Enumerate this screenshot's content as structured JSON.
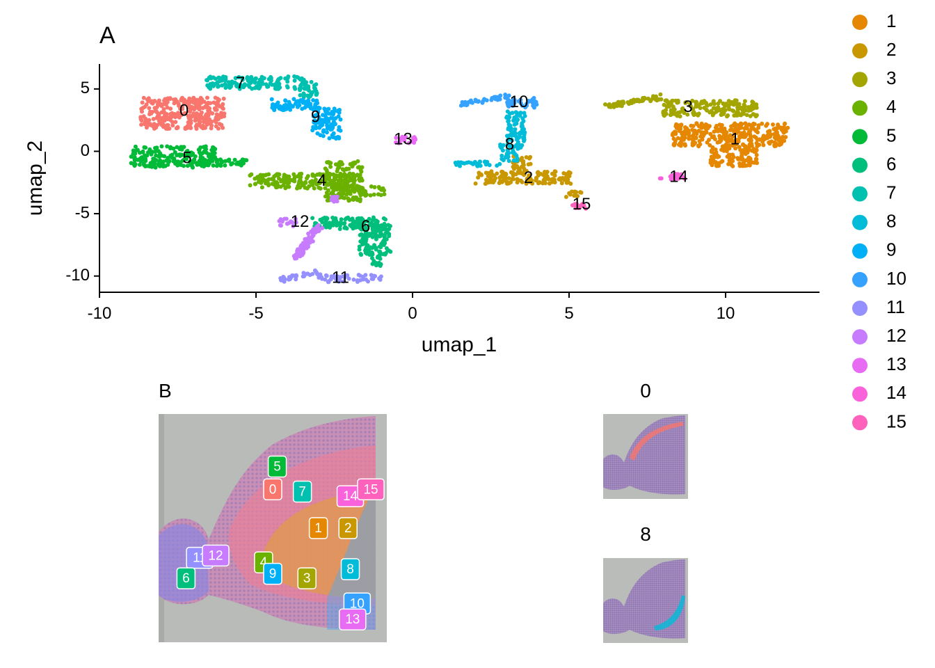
{
  "chart_data": [
    {
      "type": "scatter",
      "panel": "A",
      "xlabel": "umap_1",
      "ylabel": "umap_2",
      "xlim": [
        -10,
        13
      ],
      "ylim": [
        -11.3,
        7
      ],
      "x_ticks": [
        "-10",
        "-5",
        "0",
        "5",
        "10"
      ],
      "x_tick_values": [
        -10,
        -5,
        0,
        5,
        10
      ],
      "y_ticks": [
        "-10",
        "-5",
        "0",
        "5"
      ],
      "y_tick_values": [
        -10,
        -5,
        0,
        5
      ],
      "grid": false,
      "legend": "right",
      "series": [
        {
          "name": "0",
          "color": "#F8766D",
          "label_pos": [
            -7.3,
            3.2
          ],
          "segments": [
            [
              -8.7,
              1.8,
              -6.0,
              4.3,
              "box"
            ]
          ]
        },
        {
          "name": "1",
          "color": "#E58700",
          "label_pos": [
            10.3,
            0.9
          ],
          "segments": [
            [
              8.3,
              0.4,
              12.0,
              2.3,
              "box"
            ],
            [
              9.5,
              -1.2,
              11.0,
              0.4,
              "box"
            ]
          ]
        },
        {
          "name": "2",
          "color": "#C99800",
          "label_pos": [
            3.7,
            -2.2
          ],
          "segments": [
            [
              2.0,
              -2.6,
              5.1,
              -1.6,
              "box"
            ],
            [
              3.2,
              -1.6,
              3.8,
              -0.4,
              "box"
            ],
            [
              4.9,
              -3.7,
              5.4,
              -3.2,
              "box"
            ]
          ]
        },
        {
          "name": "3",
          "color": "#A3A500",
          "label_pos": [
            8.8,
            3.5
          ],
          "segments": [
            [
              6.2,
              3.6,
              8.0,
              4.4,
              "line"
            ],
            [
              8.0,
              2.8,
              11.0,
              4.1,
              "box"
            ]
          ]
        },
        {
          "name": "4",
          "color": "#6BB100",
          "label_pos": [
            -2.9,
            -2.4
          ],
          "segments": [
            [
              -5.2,
              -3.0,
              -2.0,
              -1.8,
              "box"
            ],
            [
              -2.8,
              -4.0,
              -1.6,
              -0.8,
              "box"
            ],
            [
              -1.8,
              -3.6,
              -0.9,
              -2.8,
              "box"
            ]
          ]
        },
        {
          "name": "5",
          "color": "#00BA38",
          "label_pos": [
            -7.2,
            -0.6
          ],
          "segments": [
            [
              -9.0,
              -1.3,
              -6.3,
              0.4,
              "box"
            ],
            [
              -6.3,
              -1.2,
              -5.3,
              -0.6,
              "box"
            ]
          ]
        },
        {
          "name": "6",
          "color": "#00BF7D",
          "label_pos": [
            -1.5,
            -6.1
          ],
          "segments": [
            [
              -3.2,
              -6.3,
              -0.8,
              -5.3,
              "box"
            ],
            [
              -1.7,
              -8.3,
              -0.7,
              -5.8,
              "box"
            ],
            [
              -1.3,
              -9.2,
              -1.0,
              -8.3,
              "box"
            ]
          ]
        },
        {
          "name": "7",
          "color": "#00C0AF",
          "label_pos": [
            -5.5,
            5.4
          ],
          "segments": [
            [
              -6.6,
              5.0,
              -3.4,
              6.0,
              "box"
            ],
            [
              -3.6,
              4.3,
              -3.0,
              5.6,
              "box"
            ]
          ]
        },
        {
          "name": "8",
          "color": "#00BCD8",
          "label_pos": [
            3.1,
            0.5
          ],
          "segments": [
            [
              3.0,
              0.2,
              3.6,
              3.2,
              "box"
            ],
            [
              1.3,
              -1.2,
              2.8,
              -0.8,
              "box"
            ],
            [
              2.8,
              -0.8,
              3.4,
              0.6,
              "box"
            ]
          ]
        },
        {
          "name": "9",
          "color": "#00B0F6",
          "label_pos": [
            -3.1,
            2.7
          ],
          "segments": [
            [
              -4.5,
              3.4,
              -3.0,
              4.2,
              "box"
            ],
            [
              -3.2,
              1.0,
              -2.3,
              3.5,
              "box"
            ],
            [
              -4.5,
              3.3,
              -3.9,
              3.7,
              "box"
            ]
          ]
        },
        {
          "name": "10",
          "color": "#35A2FF",
          "label_pos": [
            3.4,
            3.9
          ],
          "segments": [
            [
              1.6,
              3.8,
              3.0,
              4.4,
              "line"
            ],
            [
              3.0,
              3.5,
              4.0,
              4.3,
              "box"
            ]
          ]
        },
        {
          "name": "11",
          "color": "#9590FF",
          "label_pos": [
            -2.3,
            -10.2
          ],
          "segments": [
            [
              -4.2,
              -10.3,
              -3.0,
              -9.7,
              "line"
            ],
            [
              -3.0,
              -10.5,
              -1.0,
              -9.9,
              "box"
            ]
          ]
        },
        {
          "name": "12",
          "color": "#C77CFF",
          "label_pos": [
            -3.6,
            -5.7
          ],
          "segments": [
            [
              -4.3,
              -6.0,
              -3.7,
              -5.4,
              "box"
            ],
            [
              -3.7,
              -8.5,
              -3.0,
              -6.0,
              "line"
            ],
            [
              -2.6,
              -4.1,
              -2.4,
              -3.6,
              "box"
            ]
          ]
        },
        {
          "name": "13",
          "color": "#E76BF3",
          "label_pos": [
            -0.3,
            0.9
          ],
          "segments": [
            [
              -0.6,
              0.6,
              0.1,
              1.2,
              "box"
            ]
          ]
        },
        {
          "name": "14",
          "color": "#FA62DB",
          "label_pos": [
            8.5,
            -2.1
          ],
          "segments": [
            [
              7.9,
              -2.3,
              8.8,
              -1.8,
              "box"
            ]
          ]
        },
        {
          "name": "15",
          "color": "#FF62BC",
          "label_pos": [
            5.4,
            -4.3
          ],
          "segments": [
            [
              5.1,
              -4.7,
              5.6,
              -4.2,
              "box"
            ]
          ]
        }
      ]
    },
    {
      "type": "spatial",
      "panel": "B",
      "title": "B",
      "labels": [
        {
          "name": "5",
          "color": "#00BA38",
          "pos": [
            0.52,
            0.23
          ]
        },
        {
          "name": "0",
          "color": "#F8766D",
          "pos": [
            0.5,
            0.33
          ]
        },
        {
          "name": "7",
          "color": "#00C0AF",
          "pos": [
            0.63,
            0.34
          ]
        },
        {
          "name": "14",
          "color": "#FA62DB",
          "pos": [
            0.84,
            0.36
          ]
        },
        {
          "name": "15",
          "color": "#FF62BC",
          "pos": [
            0.93,
            0.33
          ]
        },
        {
          "name": "1",
          "color": "#E58700",
          "pos": [
            0.7,
            0.5
          ]
        },
        {
          "name": "2",
          "color": "#C99800",
          "pos": [
            0.83,
            0.5
          ]
        },
        {
          "name": "11",
          "color": "#9590FF",
          "pos": [
            0.18,
            0.63
          ]
        },
        {
          "name": "12",
          "color": "#C77CFF",
          "pos": [
            0.25,
            0.62
          ]
        },
        {
          "name": "4",
          "color": "#6BB100",
          "pos": [
            0.46,
            0.65
          ]
        },
        {
          "name": "9",
          "color": "#00B0F6",
          "pos": [
            0.5,
            0.7
          ]
        },
        {
          "name": "6",
          "color": "#00BF7D",
          "pos": [
            0.12,
            0.72
          ]
        },
        {
          "name": "3",
          "color": "#A3A500",
          "pos": [
            0.65,
            0.72
          ]
        },
        {
          "name": "8",
          "color": "#00BCD8",
          "pos": [
            0.84,
            0.68
          ]
        },
        {
          "name": "10",
          "color": "#35A2FF",
          "pos": [
            0.87,
            0.83
          ]
        },
        {
          "name": "13",
          "color": "#E76BF3",
          "pos": [
            0.85,
            0.9
          ]
        }
      ]
    },
    {
      "type": "spatial",
      "panel": "0",
      "title": "0",
      "highlight_color": "#F8766D"
    },
    {
      "type": "spatial",
      "panel": "8",
      "title": "8",
      "highlight_color": "#00BCD8"
    }
  ],
  "legend": {
    "items": [
      {
        "name": "1",
        "color": "#E58700"
      },
      {
        "name": "2",
        "color": "#C99800"
      },
      {
        "name": "3",
        "color": "#A3A500"
      },
      {
        "name": "4",
        "color": "#6BB100"
      },
      {
        "name": "5",
        "color": "#00BA38"
      },
      {
        "name": "6",
        "color": "#00BF7D"
      },
      {
        "name": "7",
        "color": "#00C0AF"
      },
      {
        "name": "8",
        "color": "#00BCD8"
      },
      {
        "name": "9",
        "color": "#00B0F6"
      },
      {
        "name": "10",
        "color": "#35A2FF"
      },
      {
        "name": "11",
        "color": "#9590FF"
      },
      {
        "name": "12",
        "color": "#C77CFF"
      },
      {
        "name": "13",
        "color": "#E76BF3"
      },
      {
        "name": "14",
        "color": "#FA62DB"
      },
      {
        "name": "15",
        "color": "#FF62BC"
      }
    ]
  },
  "panel_a": {
    "tag": "A"
  }
}
